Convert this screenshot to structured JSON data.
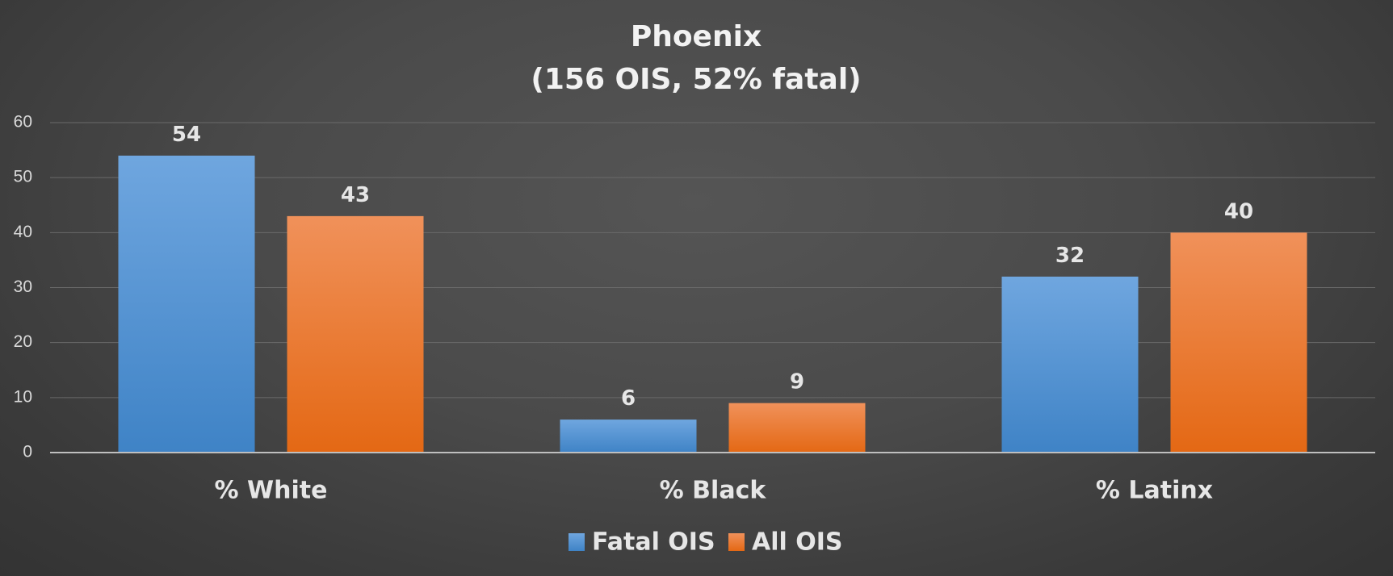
{
  "chart_data": {
    "type": "bar",
    "title": "Phoenix",
    "subtitle": "(156 OIS, 52% fatal)",
    "categories": [
      "% White",
      "% Black",
      "% Latinx"
    ],
    "series": [
      {
        "name": "Fatal OIS",
        "values": [
          54,
          6,
          32
        ],
        "color": "#5b9bd5"
      },
      {
        "name": "All OIS",
        "values": [
          43,
          9,
          40
        ],
        "color": "#ed7d31"
      }
    ],
    "ylim": [
      0,
      60
    ],
    "yticks": [
      0,
      10,
      20,
      30,
      40,
      50,
      60
    ],
    "grid": true,
    "data_labels": true,
    "legend_position": "bottom"
  }
}
